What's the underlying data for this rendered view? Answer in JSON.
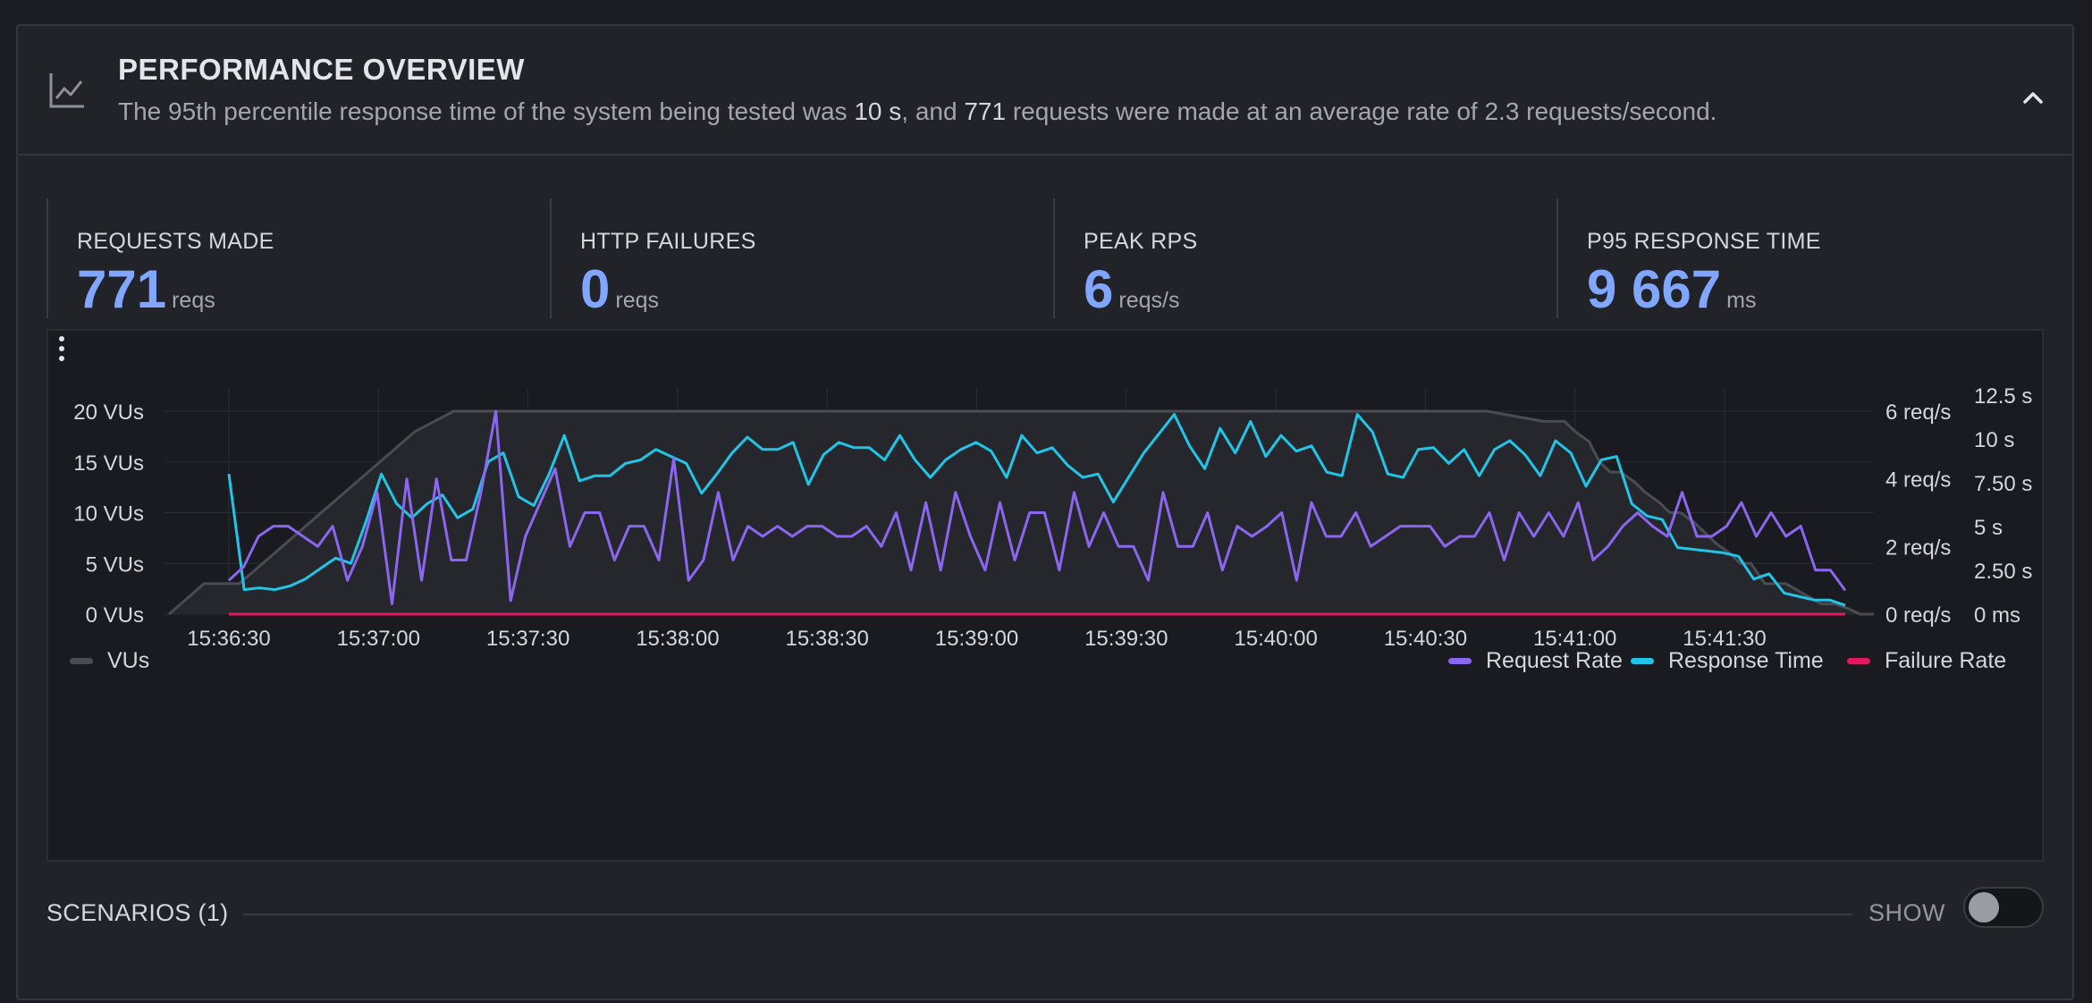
{
  "header": {
    "icon": "line-chart-icon",
    "title": "PERFORMANCE OVERVIEW",
    "summary_prefix": "The 95th percentile response time of the system being tested was ",
    "summary_p95": "10 s",
    "summary_mid": ", and ",
    "summary_requests": "771",
    "summary_suffix": " requests were made at an average rate of 2.3 requests/second.",
    "collapse_icon": "chevron-up-icon"
  },
  "stats": [
    {
      "label": "REQUESTS MADE",
      "value": "771",
      "unit": "reqs"
    },
    {
      "label": "HTTP FAILURES",
      "value": "0",
      "unit": "reqs"
    },
    {
      "label": "PEAK RPS",
      "value": "6",
      "unit": "reqs/s"
    },
    {
      "label": "P95 RESPONSE TIME",
      "value": "9 667",
      "unit": "ms"
    }
  ],
  "chart": {
    "menu_icon": "kebab-menu-icon",
    "x_ticks": [
      "15:36:30",
      "15:37:00",
      "15:37:30",
      "15:38:00",
      "15:38:30",
      "15:39:00",
      "15:39:30",
      "15:40:00",
      "15:40:30",
      "15:41:00",
      "15:41:30"
    ],
    "left_ticks": [
      "0 VUs",
      "5 VUs",
      "10 VUs",
      "15 VUs",
      "20 VUs"
    ],
    "mid_ticks": [
      "0 req/s",
      "2 req/s",
      "4 req/s",
      "6 req/s"
    ],
    "right_ticks": [
      "0 ms",
      "2.50 s",
      "5 s",
      "7.50 s",
      "10 s",
      "12.5 s"
    ],
    "legend": {
      "vus": "VUs",
      "request_rate": "Request Rate",
      "response_time": "Response Time",
      "failure_rate": "Failure Rate"
    },
    "colors": {
      "vus": "#4a4c53",
      "request_rate": "#8b67f0",
      "response_time": "#21c5e8",
      "failure_rate": "#e2195e"
    }
  },
  "chart_data": {
    "type": "line",
    "x_range": [
      "15:36:19",
      "15:41:52"
    ],
    "series": [
      {
        "name": "VUs",
        "axis": "left",
        "unit": "VUs",
        "x_seconds_from_start": [
          0,
          5,
          10,
          20,
          30,
          40,
          50,
          60,
          70,
          81,
          120,
          180,
          240,
          300,
          375,
          391,
          393,
          397,
          400,
          404,
          407,
          410,
          413,
          417,
          420,
          424,
          427,
          430,
          434,
          437,
          440,
          444,
          447,
          450,
          454,
          460,
          465,
          470,
          474,
          478,
          481,
          485
        ],
        "values": [
          0,
          1.5,
          3,
          3,
          6,
          9,
          12,
          15,
          18,
          20,
          20,
          20,
          20,
          20,
          20,
          19,
          19,
          19,
          18,
          17,
          15,
          14,
          14,
          13,
          12,
          11,
          10,
          10,
          9,
          8,
          7,
          6,
          5,
          5,
          3,
          3,
          2,
          1,
          1,
          0.5,
          0,
          0
        ]
      },
      {
        "name": "Request Rate",
        "axis": "middle",
        "unit": "req/s",
        "values": [
          1,
          1.4,
          2.3,
          2.6,
          2.6,
          2.3,
          2.0,
          2.6,
          1.0,
          2.0,
          3.6,
          0.3,
          4.0,
          1.0,
          4.0,
          1.6,
          1.6,
          3.6,
          6.0,
          0.4,
          2.3,
          3.3,
          4.3,
          2.0,
          3.0,
          3.0,
          1.6,
          2.6,
          2.6,
          1.6,
          4.6,
          1.0,
          1.6,
          3.6,
          1.6,
          2.6,
          2.3,
          2.6,
          2.3,
          2.6,
          2.6,
          2.3,
          2.3,
          2.6,
          2.0,
          3.0,
          1.3,
          3.3,
          1.3,
          3.6,
          2.3,
          1.3,
          3.3,
          1.6,
          3.0,
          3.0,
          1.3,
          3.6,
          2.0,
          3.0,
          2.0,
          2.0,
          1.0,
          3.6,
          2.0,
          2.0,
          3.0,
          1.3,
          2.6,
          2.3,
          2.6,
          3.0,
          1.0,
          3.3,
          2.3,
          2.3,
          3.0,
          2.0,
          2.3,
          2.6,
          2.6,
          2.6,
          2.0,
          2.3,
          2.3,
          3.0,
          1.6,
          3.0,
          2.3,
          3.0,
          2.3,
          3.3,
          1.6,
          2.0,
          2.6,
          3.0,
          2.6,
          2.3,
          3.6,
          2.3,
          2.3,
          2.6,
          3.3,
          2.3,
          3.0,
          2.3,
          2.6,
          1.3,
          1.3,
          0.7
        ]
      },
      {
        "name": "Response Time",
        "axis": "right",
        "unit": "s",
        "values": [
          8.0,
          1.4,
          1.5,
          1.4,
          1.6,
          2.0,
          2.6,
          3.2,
          2.9,
          5.3,
          8.0,
          6.3,
          5.5,
          6.3,
          6.8,
          5.5,
          6.0,
          8.7,
          9.2,
          6.7,
          6.2,
          8.0,
          10.2,
          7.6,
          7.9,
          7.9,
          8.6,
          8.8,
          9.4,
          9.0,
          8.6,
          6.9,
          8.0,
          9.2,
          10.1,
          9.4,
          9.4,
          9.8,
          7.4,
          9.1,
          9.8,
          9.5,
          9.5,
          8.8,
          10.2,
          8.8,
          7.8,
          8.8,
          9.4,
          9.8,
          9.3,
          7.8,
          10.2,
          9.2,
          9.5,
          8.5,
          7.8,
          8.0,
          6.4,
          7.8,
          9.2,
          10.3,
          11.4,
          9.6,
          8.3,
          10.6,
          9.2,
          11.0,
          9.0,
          10.2,
          9.3,
          9.6,
          8.1,
          7.9,
          11.4,
          10.4,
          8.0,
          7.8,
          9.4,
          9.5,
          8.6,
          9.4,
          7.9,
          9.4,
          9.9,
          9.1,
          7.9,
          9.9,
          9.2,
          7.3,
          8.8,
          9.0,
          6.3,
          5.6,
          5.4,
          3.8,
          3.7,
          3.6,
          3.5,
          3.3,
          2.0,
          2.3,
          1.2,
          1.0,
          0.8,
          0.8,
          0.5
        ]
      },
      {
        "name": "Failure Rate",
        "axis": "middle",
        "unit": "req/s",
        "values": [
          0,
          0
        ]
      }
    ],
    "left_axis": {
      "min": 0,
      "max": 20,
      "ticks": [
        0,
        5,
        10,
        15,
        20
      ]
    },
    "middle_axis": {
      "min": 0,
      "max": 6,
      "ticks": [
        0,
        2,
        4,
        6
      ]
    },
    "right_axis": {
      "min": 0,
      "max": 12.5,
      "ticks": [
        0,
        2.5,
        5,
        7.5,
        10,
        12.5
      ]
    },
    "grid": true,
    "legend_placement": "bottom"
  },
  "scenarios": {
    "label": "SCENARIOS (1)",
    "toggle_label": "SHOW",
    "toggle_on": false
  }
}
